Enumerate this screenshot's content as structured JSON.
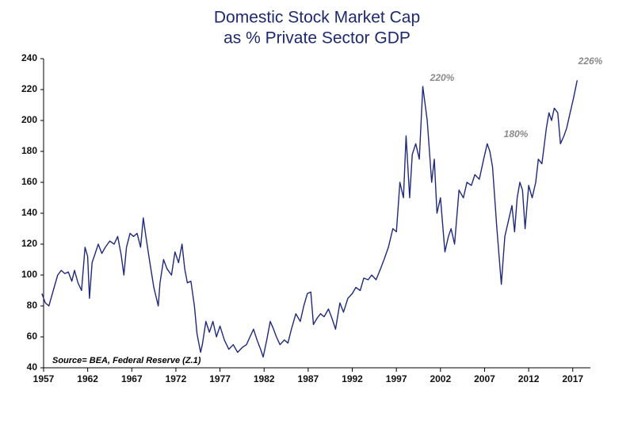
{
  "chart_data": {
    "type": "line",
    "title": "Domestic Stock Market Cap",
    "subtitle": "as % Private Sector GDP",
    "source": "Source= BEA, Federal Reserve (Z.1)",
    "annotations": [
      "220%",
      "180%",
      "226%"
    ],
    "xlim": [
      1957,
      2019
    ],
    "xticks": [
      1957,
      1962,
      1967,
      1972,
      1977,
      1982,
      1987,
      1992,
      1997,
      2002,
      2007,
      2012,
      2017
    ],
    "ylim": [
      40,
      240
    ],
    "yticks": [
      40,
      60,
      80,
      100,
      120,
      140,
      160,
      180,
      200,
      220,
      240
    ],
    "series": [
      {
        "name": "Domestic Stock Market Cap as % Private Sector GDP",
        "color": "#1f2a7a",
        "x": [
          1956.8,
          1957.2,
          1957.6,
          1958.1,
          1958.6,
          1959.0,
          1959.4,
          1959.8,
          1960.2,
          1960.5,
          1960.9,
          1961.3,
          1961.7,
          1962.0,
          1962.2,
          1962.5,
          1962.8,
          1963.2,
          1963.6,
          1964.0,
          1964.5,
          1965.0,
          1965.4,
          1965.8,
          1966.1,
          1966.4,
          1966.8,
          1967.2,
          1967.6,
          1968.0,
          1968.3,
          1968.6,
          1969.0,
          1969.5,
          1970.0,
          1970.2,
          1970.6,
          1971.0,
          1971.5,
          1971.9,
          1972.3,
          1972.7,
          1973.0,
          1973.3,
          1973.7,
          1974.1,
          1974.4,
          1974.8,
          1975.0,
          1975.4,
          1975.8,
          1976.2,
          1976.6,
          1977.0,
          1977.5,
          1978.0,
          1978.5,
          1979.0,
          1979.5,
          1980.0,
          1980.4,
          1980.8,
          1981.2,
          1981.6,
          1981.9,
          1982.3,
          1982.7,
          1983.0,
          1983.4,
          1983.8,
          1984.3,
          1984.7,
          1985.1,
          1985.6,
          1986.1,
          1986.5,
          1986.9,
          1987.3,
          1987.6,
          1988.0,
          1988.4,
          1988.8,
          1989.3,
          1989.7,
          1990.1,
          1990.6,
          1991.0,
          1991.5,
          1992.0,
          1992.4,
          1992.9,
          1993.3,
          1993.8,
          1994.2,
          1994.7,
          1995.2,
          1995.6,
          1996.1,
          1996.6,
          1997.0,
          1997.4,
          1997.8,
          1998.1,
          1998.5,
          1998.8,
          1999.2,
          1999.6,
          2000.0,
          2000.5,
          2001.0,
          2001.3,
          2001.6,
          2002.0,
          2002.5,
          2002.9,
          2003.2,
          2003.6,
          2004.1,
          2004.6,
          2005.0,
          2005.5,
          2005.9,
          2006.4,
          2006.9,
          2007.3,
          2007.6,
          2007.9,
          2008.4,
          2008.9,
          2009.3,
          2009.7,
          2010.1,
          2010.4,
          2010.7,
          2011.0,
          2011.3,
          2011.6,
          2012.0,
          2012.4,
          2012.8,
          2013.1,
          2013.5,
          2014.0,
          2014.3,
          2014.6,
          2014.9,
          2015.3,
          2015.6,
          2016.0,
          2016.3,
          2016.7,
          2017.1,
          2017.5
        ],
        "values": [
          88,
          82,
          80,
          90,
          100,
          103,
          101,
          102,
          96,
          103,
          95,
          90,
          118,
          112,
          85,
          108,
          113,
          120,
          114,
          118,
          122,
          120,
          125,
          113,
          100,
          118,
          127,
          125,
          127,
          118,
          137,
          125,
          110,
          92,
          80,
          95,
          110,
          104,
          100,
          115,
          108,
          120,
          104,
          95,
          96,
          80,
          62,
          50,
          55,
          70,
          63,
          70,
          60,
          67,
          58,
          52,
          55,
          50,
          53,
          55,
          60,
          65,
          58,
          52,
          47,
          58,
          70,
          66,
          60,
          55,
          58,
          56,
          65,
          75,
          70,
          80,
          88,
          89,
          68,
          72,
          75,
          73,
          78,
          72,
          65,
          82,
          76,
          85,
          88,
          92,
          90,
          98,
          97,
          100,
          97,
          104,
          110,
          118,
          130,
          128,
          160,
          150,
          190,
          150,
          178,
          185,
          175,
          222,
          200,
          160,
          175,
          140,
          150,
          115,
          125,
          130,
          120,
          155,
          150,
          160,
          158,
          165,
          162,
          175,
          185,
          180,
          170,
          130,
          94,
          125,
          135,
          145,
          128,
          150,
          160,
          155,
          130,
          158,
          150,
          160,
          175,
          172,
          195,
          205,
          200,
          208,
          205,
          185,
          190,
          195,
          205,
          215,
          226
        ]
      }
    ]
  }
}
